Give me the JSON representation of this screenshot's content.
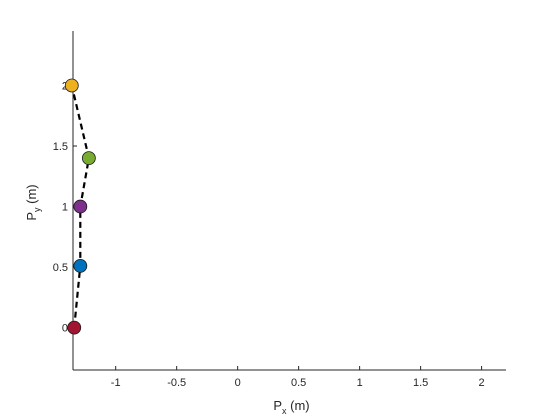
{
  "chart_data": {
    "type": "line",
    "xlabel": {
      "main": "P",
      "sub": "x",
      "unit": " (m)"
    },
    "ylabel": {
      "main": "P",
      "sub": "y",
      "unit": " (m)"
    },
    "xlim": [
      -1.35,
      2.2
    ],
    "ylim": [
      -0.35,
      2.45
    ],
    "xticks": [
      -1,
      -0.5,
      0,
      0.5,
      1,
      1.5,
      2
    ],
    "xtick_labels": [
      "-1",
      "-0.5",
      "0",
      "0.5",
      "1",
      "1.5",
      "2"
    ],
    "yticks": [
      0,
      0.5,
      1,
      1.5,
      2
    ],
    "ytick_labels": [
      "0",
      "0.5",
      "1",
      "1.5",
      "2"
    ],
    "grid": false,
    "series": [
      {
        "line_style": "dashed",
        "line_color": "#000000",
        "points": [
          {
            "x": -1.34,
            "y": 0.0,
            "color": "#A2142F"
          },
          {
            "x": -1.29,
            "y": 0.51,
            "color": "#0072BD"
          },
          {
            "x": -1.29,
            "y": 1.0,
            "color": "#7E2F8E"
          },
          {
            "x": -1.22,
            "y": 1.4,
            "color": "#77AC30"
          },
          {
            "x": -1.36,
            "y": 2.0,
            "color": "#EDB120"
          }
        ]
      }
    ]
  }
}
